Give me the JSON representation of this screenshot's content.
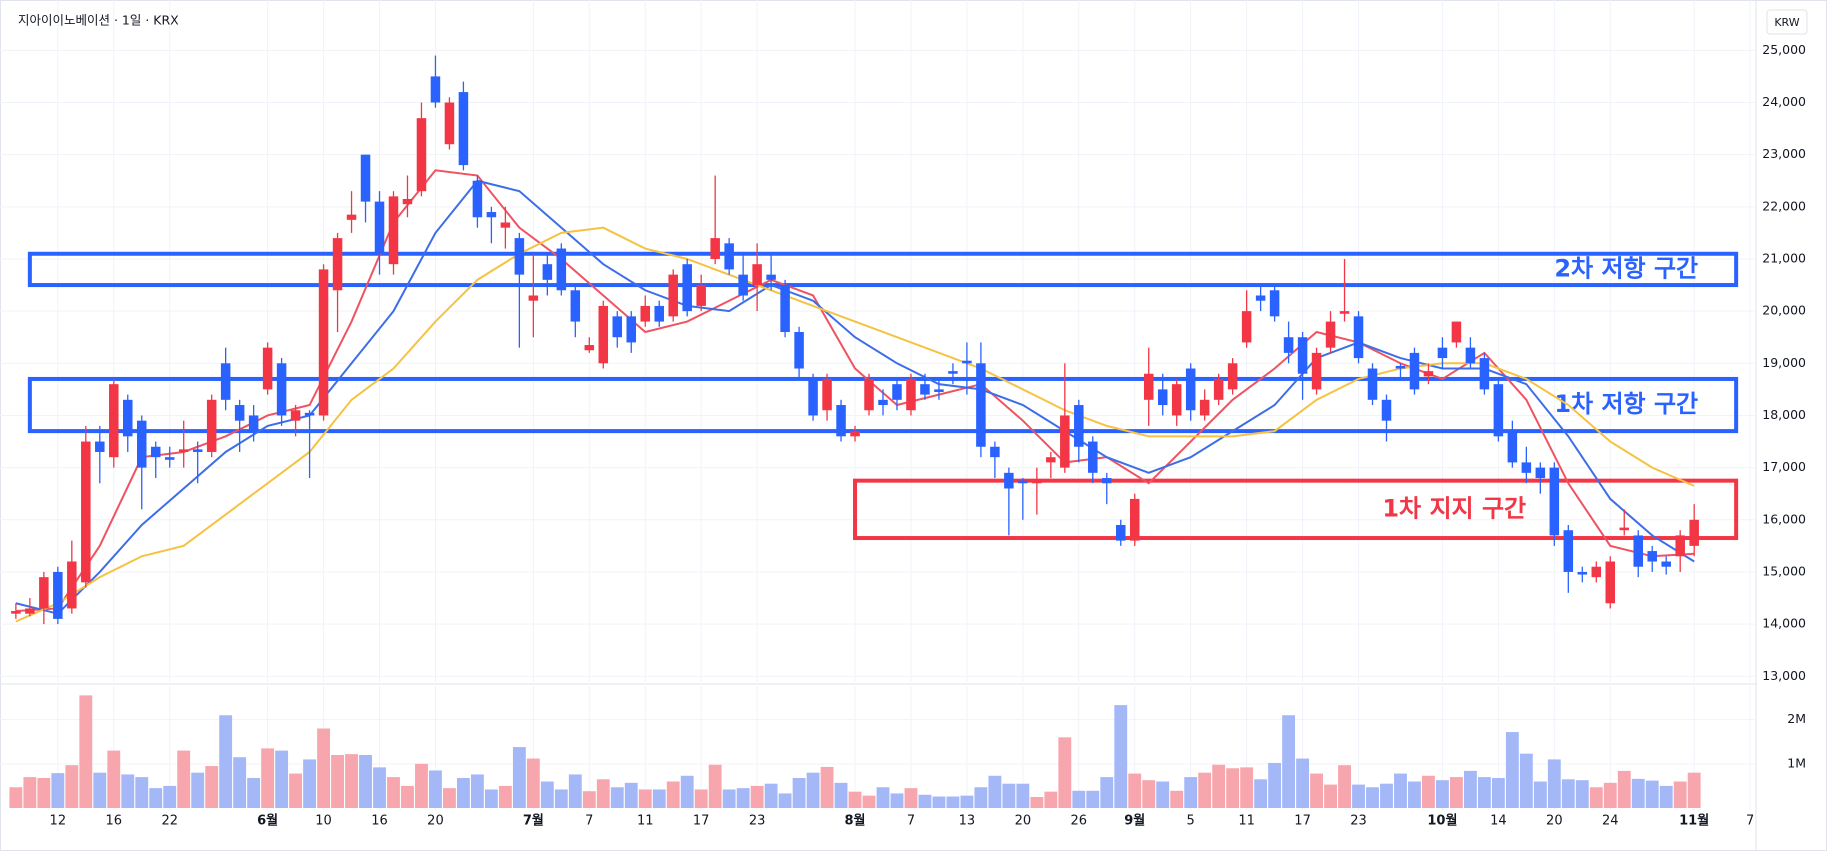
{
  "chart_data": {
    "type": "candlestick",
    "title": "지아이이노베이션 · 1일 · KRX",
    "currency": "KRW",
    "up_color": "#f23645",
    "down_color": "#2962ff",
    "volume_up_color": "#f7a6ae",
    "volume_down_color": "#a4b8f8",
    "grid": true,
    "xlim": [
      -0.42,
      124.42
    ],
    "xticks": [
      {
        "value": 3,
        "label": "12"
      },
      {
        "value": 7,
        "label": "16"
      },
      {
        "value": 11,
        "label": "22"
      },
      {
        "value": 18,
        "label": "6월"
      },
      {
        "value": 22,
        "label": "10"
      },
      {
        "value": 26,
        "label": "16"
      },
      {
        "value": 30,
        "label": "20"
      },
      {
        "value": 37,
        "label": "7월"
      },
      {
        "value": 41,
        "label": "7"
      },
      {
        "value": 45,
        "label": "11"
      },
      {
        "value": 49,
        "label": "17"
      },
      {
        "value": 53,
        "label": "23"
      },
      {
        "value": 60,
        "label": "8월"
      },
      {
        "value": 64,
        "label": "7"
      },
      {
        "value": 68,
        "label": "13"
      },
      {
        "value": 72,
        "label": "20"
      },
      {
        "value": 76,
        "label": "26"
      },
      {
        "value": 80,
        "label": "9월"
      },
      {
        "value": 84,
        "label": "5"
      },
      {
        "value": 88,
        "label": "11"
      },
      {
        "value": 92,
        "label": "17"
      },
      {
        "value": 96,
        "label": "23"
      },
      {
        "value": 102,
        "label": "10월"
      },
      {
        "value": 106,
        "label": "14"
      },
      {
        "value": 110,
        "label": "20"
      },
      {
        "value": 114,
        "label": "24"
      },
      {
        "value": 120,
        "label": "11월"
      },
      {
        "value": 124,
        "label": "7"
      }
    ],
    "ylim": [
      12890,
      25850
    ],
    "yticks": [
      {
        "value": 13000,
        "label": "13,000"
      },
      {
        "value": 14000,
        "label": "14,000"
      },
      {
        "value": 15000,
        "label": "15,000"
      },
      {
        "value": 16000,
        "label": "16,000"
      },
      {
        "value": 17000,
        "label": "17,000"
      },
      {
        "value": 18000,
        "label": "18,000"
      },
      {
        "value": 19000,
        "label": "19,000"
      },
      {
        "value": 20000,
        "label": "20,000"
      },
      {
        "value": 21000,
        "label": "21,000"
      },
      {
        "value": 22000,
        "label": "22,000"
      },
      {
        "value": 23000,
        "label": "23,000"
      },
      {
        "value": 24000,
        "label": "24,000"
      },
      {
        "value": 25000,
        "label": "25,000"
      }
    ],
    "volume_ylim": [
      0,
      2740000
    ],
    "volume_ticks": [
      {
        "value": 1000000,
        "label": "1M"
      },
      {
        "value": 2000000,
        "label": "2M"
      }
    ],
    "open": [
      14200,
      14200,
      14300,
      15000,
      14300,
      14800,
      17500,
      17200,
      18300,
      17900,
      17400,
      17200,
      17300,
      17350,
      17300,
      19000,
      18200,
      18000,
      18500,
      19000,
      17900,
      18050,
      18000,
      20400,
      21750,
      23000,
      22100,
      20900,
      22050,
      22300,
      24500,
      23200,
      24200,
      22500,
      21900,
      21600,
      21400,
      20200,
      20900,
      21200,
      20400,
      19250,
      19000,
      19900,
      19900,
      19800,
      20100,
      19900,
      20900,
      20100,
      21000,
      21300,
      20700,
      20500,
      20700,
      20500,
      19600,
      18700,
      18100,
      18200,
      17600,
      18100,
      18300,
      18600,
      18100,
      18600,
      18500,
      18850,
      19050,
      19000,
      17400,
      16900,
      16750,
      16700,
      17100,
      17000,
      18200,
      17500,
      16800,
      15900,
      15600,
      18300,
      18500,
      18000,
      18900,
      18000,
      18300,
      18500,
      19400,
      20300,
      20400,
      19500,
      19500,
      18500,
      19300,
      19950,
      19900,
      18900,
      18300,
      18950,
      19200,
      18750,
      19300,
      19400,
      19300,
      19100,
      18600,
      17700,
      17100,
      17000,
      17000,
      15800,
      15000,
      14900,
      14400,
      15800,
      15700,
      15400,
      15200,
      15300,
      15500
    ],
    "high": [
      14400,
      14500,
      15000,
      15100,
      15600,
      17800,
      17800,
      18700,
      18400,
      18000,
      17500,
      17400,
      17900,
      17500,
      18400,
      19300,
      18300,
      18200,
      19400,
      19100,
      18200,
      18100,
      20900,
      21500,
      22300,
      23000,
      22300,
      22300,
      22600,
      24000,
      24900,
      24100,
      24400,
      22600,
      22000,
      22000,
      21500,
      21100,
      21100,
      21300,
      20500,
      19500,
      20200,
      20000,
      20000,
      20300,
      20200,
      20800,
      21000,
      20700,
      22600,
      21400,
      21100,
      21300,
      21100,
      20600,
      19700,
      18800,
      18800,
      18300,
      17800,
      18800,
      18500,
      18700,
      18800,
      18800,
      18700,
      19000,
      19400,
      19400,
      17500,
      17000,
      16800,
      17000,
      17300,
      19000,
      18300,
      17600,
      16900,
      16000,
      16500,
      19300,
      18800,
      18700,
      19000,
      18500,
      18800,
      19100,
      20400,
      20500,
      20500,
      19800,
      19600,
      19300,
      20000,
      21000,
      20000,
      19000,
      18400,
      19000,
      19300,
      19000,
      19500,
      19800,
      19500,
      19200,
      18700,
      17900,
      17400,
      17100,
      17100,
      15900,
      15100,
      15200,
      15300,
      16200,
      15800,
      15500,
      15300,
      15800,
      16300
    ],
    "low": [
      14100,
      14150,
      14000,
      14000,
      14200,
      14700,
      16700,
      17000,
      17300,
      16200,
      16800,
      17000,
      17000,
      16700,
      17200,
      18100,
      17300,
      17500,
      18400,
      17800,
      17600,
      16800,
      17900,
      19600,
      21500,
      21700,
      20700,
      20700,
      21800,
      22200,
      23900,
      23100,
      22700,
      21600,
      21300,
      21200,
      19300,
      19500,
      20300,
      20300,
      19500,
      19200,
      18900,
      19300,
      19200,
      19700,
      19700,
      19800,
      19900,
      20000,
      20900,
      20700,
      20200,
      20000,
      20400,
      19500,
      18700,
      17900,
      17900,
      17500,
      17500,
      18000,
      18000,
      18100,
      18000,
      18300,
      18300,
      18600,
      18400,
      17200,
      16800,
      15700,
      16000,
      16100,
      16800,
      16900,
      17100,
      16700,
      16300,
      15500,
      15500,
      17800,
      18000,
      17800,
      17900,
      17900,
      18200,
      18400,
      19300,
      20000,
      19800,
      19000,
      18300,
      18400,
      19200,
      19800,
      19000,
      18200,
      17500,
      18700,
      18400,
      18600,
      18900,
      19300,
      18900,
      18400,
      17500,
      17000,
      16700,
      16500,
      15500,
      14600,
      14800,
      14800,
      14300,
      15700,
      14900,
      15000,
      14950,
      15000,
      15300
    ],
    "close": [
      14250,
      14300,
      14900,
      14100,
      15200,
      17500,
      17300,
      18600,
      17600,
      17000,
      17200,
      17150,
      17350,
      17300,
      18300,
      18300,
      17900,
      17700,
      19300,
      18000,
      18100,
      18000,
      20800,
      21400,
      21850,
      22100,
      21100,
      22200,
      22150,
      23700,
      24000,
      24000,
      22800,
      21800,
      21800,
      21700,
      20700,
      20300,
      20600,
      20400,
      19800,
      19350,
      20100,
      19500,
      19400,
      20100,
      19800,
      20700,
      20000,
      20500,
      21400,
      20800,
      20300,
      20900,
      20600,
      19600,
      18900,
      18000,
      18700,
      17600,
      17700,
      18700,
      18200,
      18300,
      18700,
      18400,
      18450,
      18800,
      19000,
      17400,
      17200,
      16600,
      16700,
      16750,
      17200,
      18000,
      17400,
      16900,
      16700,
      15600,
      16400,
      18800,
      18200,
      18600,
      18100,
      18300,
      18700,
      19000,
      20000,
      20200,
      19900,
      19200,
      18800,
      19200,
      19800,
      20000,
      19100,
      18300,
      17900,
      18900,
      18500,
      18850,
      19100,
      19800,
      19000,
      18500,
      17600,
      17100,
      16900,
      16800,
      15700,
      15000,
      14950,
      15100,
      15200,
      15850,
      15100,
      15200,
      15100,
      15700,
      16000
    ],
    "volume": [
      470000,
      700000,
      680000,
      790000,
      970000,
      2550000,
      800000,
      1300000,
      760000,
      700000,
      450000,
      500000,
      1300000,
      800000,
      950000,
      2100000,
      1150000,
      680000,
      1350000,
      1300000,
      780000,
      1100000,
      1800000,
      1200000,
      1220000,
      1200000,
      920000,
      700000,
      500000,
      1000000,
      850000,
      450000,
      680000,
      760000,
      420000,
      500000,
      1380000,
      1120000,
      600000,
      420000,
      760000,
      380000,
      650000,
      470000,
      570000,
      420000,
      420000,
      600000,
      730000,
      420000,
      980000,
      420000,
      450000,
      500000,
      550000,
      330000,
      680000,
      800000,
      930000,
      570000,
      370000,
      280000,
      470000,
      330000,
      450000,
      300000,
      260000,
      260000,
      280000,
      470000,
      730000,
      550000,
      550000,
      250000,
      370000,
      1600000,
      390000,
      390000,
      700000,
      2330000,
      780000,
      630000,
      600000,
      390000,
      700000,
      800000,
      980000,
      900000,
      920000,
      650000,
      1020000,
      2100000,
      1120000,
      780000,
      530000,
      970000,
      530000,
      470000,
      550000,
      780000,
      600000,
      730000,
      630000,
      700000,
      840000,
      700000,
      680000,
      1720000,
      1230000,
      600000,
      1100000,
      650000,
      630000,
      470000,
      570000,
      840000,
      660000,
      620000,
      500000,
      600000,
      800000
    ],
    "series": [
      {
        "color": "#ef5361",
        "x": [
          0,
          3,
          6,
          9,
          12,
          15,
          18,
          21,
          24,
          27,
          30,
          33,
          36,
          39,
          42,
          45,
          48,
          51,
          54,
          57,
          60,
          63,
          66,
          69,
          72,
          75,
          78,
          81,
          84,
          87,
          90,
          93,
          96,
          99,
          102,
          105,
          108,
          111,
          114,
          117,
          120
        ],
        "values": [
          14250,
          14300,
          15500,
          17200,
          17300,
          17600,
          18000,
          18200,
          19800,
          21700,
          22700,
          22600,
          21600,
          21000,
          20300,
          19600,
          19800,
          20200,
          20600,
          20300,
          18900,
          18200,
          18400,
          18600,
          17900,
          17100,
          17200,
          16700,
          17500,
          18300,
          18900,
          19600,
          19400,
          19000,
          18700,
          19200,
          18300,
          16700,
          15500,
          15300,
          15350
        ]
      },
      {
        "color": "#3d6ee8",
        "x": [
          0,
          3,
          6,
          9,
          12,
          15,
          18,
          21,
          24,
          27,
          30,
          33,
          36,
          39,
          42,
          45,
          48,
          51,
          54,
          57,
          60,
          63,
          66,
          69,
          72,
          75,
          78,
          81,
          84,
          87,
          90,
          93,
          96,
          99,
          102,
          105,
          108,
          111,
          114,
          117,
          120
        ],
        "values": [
          14400,
          14200,
          15000,
          15900,
          16600,
          17300,
          17800,
          18000,
          19000,
          20000,
          21500,
          22500,
          22300,
          21600,
          20900,
          20400,
          20100,
          20000,
          20500,
          20200,
          19500,
          19000,
          18600,
          18500,
          18200,
          17700,
          17200,
          16900,
          17200,
          17700,
          18200,
          19100,
          19400,
          19100,
          18900,
          18900,
          18600,
          17600,
          16400,
          15700,
          15200
        ]
      },
      {
        "color": "#f5c242",
        "x": [
          0,
          3,
          6,
          9,
          12,
          15,
          18,
          21,
          24,
          27,
          30,
          33,
          36,
          39,
          42,
          45,
          48,
          51,
          54,
          57,
          60,
          63,
          66,
          69,
          72,
          75,
          78,
          81,
          84,
          87,
          90,
          93,
          96,
          99,
          102,
          105,
          108,
          111,
          114,
          117,
          120
        ],
        "values": [
          14050,
          14400,
          14900,
          15300,
          15500,
          16100,
          16700,
          17300,
          18300,
          18900,
          19800,
          20600,
          21100,
          21500,
          21600,
          21200,
          21000,
          20700,
          20400,
          20100,
          19800,
          19500,
          19200,
          18900,
          18500,
          18100,
          17800,
          17600,
          17600,
          17600,
          17700,
          18300,
          18700,
          18900,
          19000,
          19000,
          18700,
          18200,
          17500,
          17000,
          16650
        ]
      }
    ],
    "zones": [
      {
        "text": "2차 저항 구간",
        "range": [
          20500,
          21100
        ],
        "span": [
          1,
          123
        ],
        "color": "#2962ff"
      },
      {
        "text": "1차 저항 구간",
        "range": [
          17700,
          18700
        ],
        "span": [
          1,
          123
        ],
        "color": "#2962ff"
      },
      {
        "text": "1차 지지 구간",
        "range": [
          15650,
          16750
        ],
        "span": [
          60,
          123
        ],
        "color": "#f23645"
      }
    ]
  }
}
